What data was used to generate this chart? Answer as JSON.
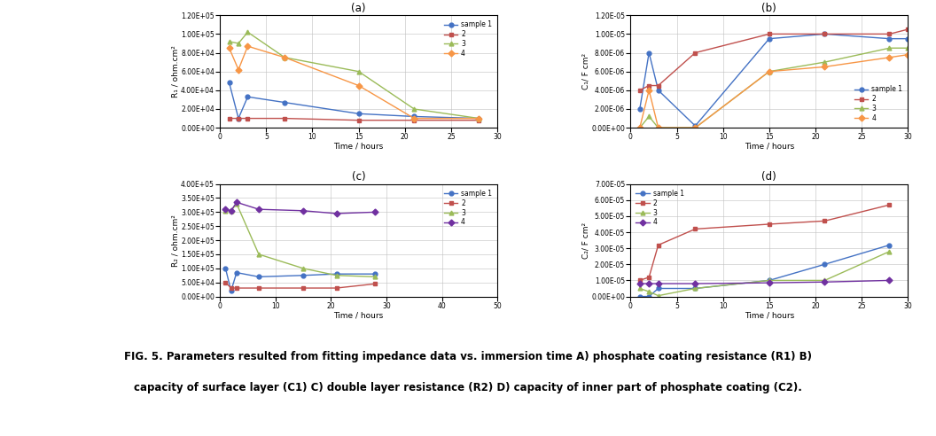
{
  "time_abd": [
    1,
    2,
    3,
    7,
    15,
    21,
    28,
    30
  ],
  "time_c": [
    1,
    2,
    3,
    7,
    15,
    21,
    28,
    30
  ],
  "R1_s1": [
    48000.0,
    10000.0,
    33000.0,
    27000.0,
    15000.0,
    12000.0,
    10000.0,
    null
  ],
  "R1_s2": [
    10000.0,
    10000.0,
    10000.0,
    10000.0,
    8000.0,
    8000.0,
    8000.0,
    null
  ],
  "R1_s3": [
    92000.0,
    90000.0,
    102000.0,
    75000.0,
    60000.0,
    20000.0,
    10000.0,
    null
  ],
  "R1_s4": [
    85000.0,
    62000.0,
    87000.0,
    75000.0,
    45000.0,
    10000.0,
    10000.0,
    null
  ],
  "C1_s1": [
    2e-06,
    8e-06,
    4e-06,
    2e-07,
    9.5e-06,
    1e-05,
    9.5e-06,
    9.5e-06
  ],
  "C1_s2": [
    4e-06,
    4.5e-06,
    4.5e-06,
    8e-06,
    1e-05,
    1e-05,
    1e-05,
    1.05e-05
  ],
  "C1_s3": [
    0.0,
    1.2e-06,
    0.0,
    0.0,
    6e-06,
    7e-06,
    8.5e-06,
    8.5e-06
  ],
  "C1_s4": [
    0.0,
    4e-06,
    0.0,
    0.0,
    6e-06,
    6.5e-06,
    7.5e-06,
    7.8e-06
  ],
  "R2_s1": [
    100000.0,
    20000.0,
    85000.0,
    70000.0,
    75000.0,
    80000.0,
    80000.0,
    null
  ],
  "R2_s2": [
    50000.0,
    30000.0,
    30000.0,
    30000.0,
    30000.0,
    30000.0,
    45000.0,
    null
  ],
  "R2_s3": [
    305000.0,
    305000.0,
    330000.0,
    150000.0,
    100000.0,
    75000.0,
    70000.0,
    null
  ],
  "R2_s4": [
    310000.0,
    305000.0,
    335000.0,
    310000.0,
    305000.0,
    295000.0,
    300000.0,
    null
  ],
  "C2_s1": [
    0.0,
    0.0,
    5e-06,
    5e-06,
    1e-05,
    2e-05,
    3.2e-05,
    null
  ],
  "C2_s2": [
    1e-05,
    1.2e-05,
    3.2e-05,
    4.2e-05,
    4.5e-05,
    4.7e-05,
    5.7e-05,
    null
  ],
  "C2_s3": [
    5e-06,
    3e-06,
    5e-07,
    5e-06,
    1e-05,
    1e-05,
    2.8e-05,
    null
  ],
  "C2_s4": [
    8e-06,
    8e-06,
    8e-06,
    8e-06,
    8.5e-06,
    9e-06,
    1e-05,
    null
  ],
  "colors_ab": [
    "#4472c4",
    "#c0504d",
    "#9bbb59",
    "#f79646"
  ],
  "colors_cd": [
    "#4472c4",
    "#c0504d",
    "#9bbb59",
    "#7030a0"
  ],
  "markers": [
    "o",
    "s",
    "^",
    "D"
  ],
  "legend_labels": [
    "sample 1",
    "2",
    "3",
    "4"
  ],
  "title_a": "(a)",
  "title_b": "(b)",
  "title_c": "(c)",
  "title_d": "(d)",
  "ylabel_a": "R₁ / ohm.cm²",
  "ylabel_b": "C₁/ F cm²",
  "ylabel_c": "R₂ / ohm.cm²",
  "ylabel_d": "C₂/ F cm²",
  "xlabel": "Time / hours",
  "ylim_a": [
    0,
    120000.0
  ],
  "ylim_b": [
    0,
    1.2e-05
  ],
  "ylim_c": [
    0,
    400000.0
  ],
  "ylim_d": [
    0,
    7e-05
  ],
  "yticks_a": [
    0,
    20000.0,
    40000.0,
    60000.0,
    80000.0,
    100000.0,
    120000.0
  ],
  "yticks_b": [
    0,
    2e-06,
    4e-06,
    6e-06,
    8e-06,
    1e-05,
    1.2e-05
  ],
  "yticks_c": [
    0,
    50000.0,
    100000.0,
    150000.0,
    200000.0,
    250000.0,
    300000.0,
    350000.0,
    400000.0
  ],
  "yticks_d": [
    0,
    1e-05,
    2e-05,
    3e-05,
    4e-05,
    5e-05,
    6e-05,
    7e-05
  ],
  "xticks_abd": [
    0,
    5,
    10,
    15,
    20,
    25,
    30
  ],
  "xticks_c": [
    0,
    10,
    20,
    30,
    40,
    50
  ],
  "xlim_abd": [
    0,
    30
  ],
  "xlim_c": [
    0,
    50
  ],
  "caption_line1": "FIG. 5. Parameters resulted from fitting impedance data vs. immersion time A) phosphate coating resistance (R1) B)",
  "caption_line2": "capacity of surface layer (C1) C) double layer resistance (R2) D) capacity of inner part of phosphate coating (C2).",
  "figure_bg": "#ffffff"
}
